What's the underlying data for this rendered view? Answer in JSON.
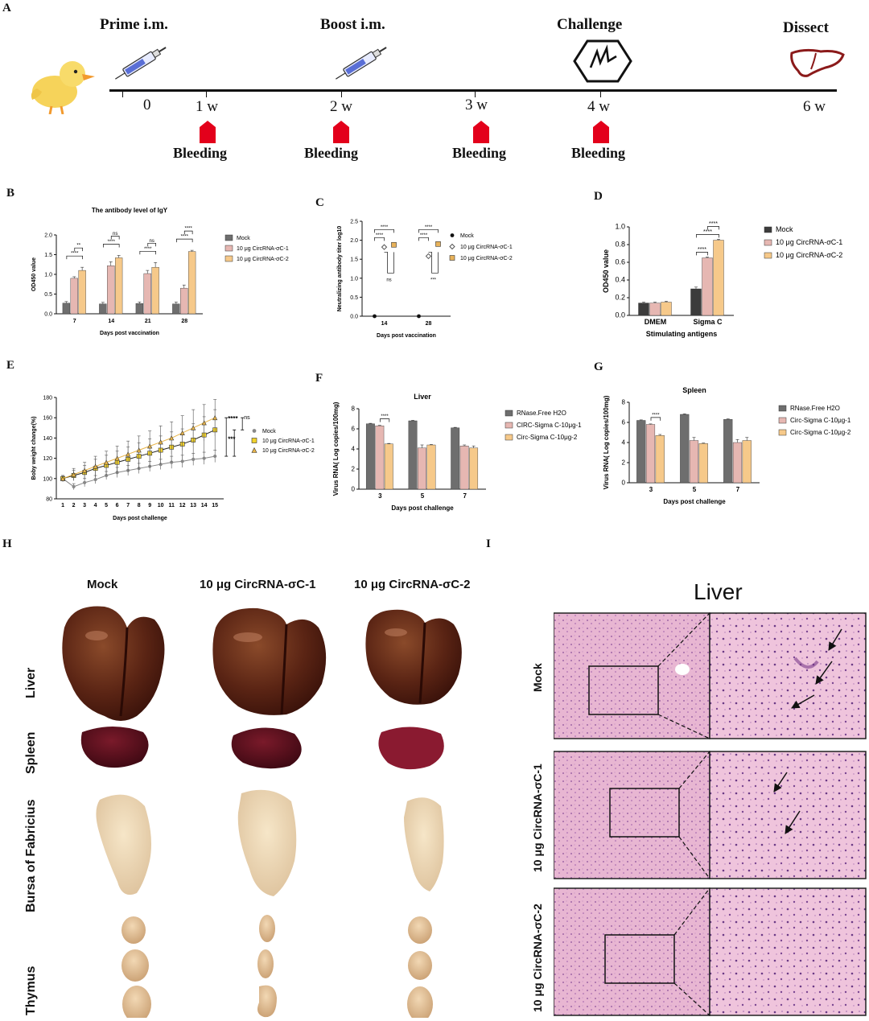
{
  "panels": {
    "A": "A",
    "B": "B",
    "C": "C",
    "D": "D",
    "E": "E",
    "F": "F",
    "G": "G",
    "H": "H",
    "I": "I"
  },
  "timeline": {
    "events": [
      "Prime i.m.",
      "Boost i.m.",
      "Challenge",
      "Dissect"
    ],
    "ticks": [
      "0",
      "1 w",
      "2 w",
      "3 w",
      "4 w",
      "6 w"
    ],
    "bleeding": [
      "Bleeding",
      "Bleeding",
      "Bleeding",
      "Bleeding"
    ],
    "colors": {
      "arrow": "#e3001b",
      "liver": "#8b1a1a",
      "syringe": "#5a6fd6"
    }
  },
  "photos": {
    "columns": [
      "Mock",
      "10 μg CircRNA-σC-1",
      "10 μg CircRNA-σC-2"
    ],
    "rows": [
      "Liver",
      "Spleen",
      "Bursa of Fabricius",
      "Thymus"
    ]
  },
  "histology": {
    "title": "Liver",
    "rows": [
      "Mock",
      "10 μg CircRNA-σC-1",
      "10 μg CircRNA-σC-2"
    ]
  },
  "chart_data": [
    {
      "id": "B",
      "type": "bar",
      "title": "The antibody level of IgY",
      "xlabel": "Days post vaccination",
      "ylabel": "OD450 value",
      "ylim": [
        0,
        2.0
      ],
      "yticks": [
        "0.0",
        "0.5",
        "1.0",
        "1.5",
        "2.0"
      ],
      "categories": [
        "7",
        "14",
        "21",
        "28"
      ],
      "series": [
        {
          "name": "Mock",
          "values": [
            0.27,
            0.25,
            0.26,
            0.25
          ],
          "errors": [
            0.04,
            0.04,
            0.04,
            0.05
          ],
          "color": "#6e6e6e"
        },
        {
          "name": "10 μg CircRNA-σC-1",
          "values": [
            0.9,
            1.22,
            1.02,
            0.65
          ],
          "errors": [
            0.04,
            0.1,
            0.08,
            0.08
          ],
          "color": "#e6b7b2"
        },
        {
          "name": "10 μg CircRNA-σC-2",
          "values": [
            1.1,
            1.42,
            1.18,
            1.58
          ],
          "errors": [
            0.08,
            0.06,
            0.12,
            0.03
          ],
          "color": "#f6c98a"
        }
      ],
      "annotations": [
        "****",
        "**",
        "****",
        "ns",
        "****",
        "ns",
        "****",
        "****"
      ]
    },
    {
      "id": "C",
      "type": "scatter",
      "title": "",
      "xlabel": "Days post vaccination",
      "ylabel": "Neutralizing antibody titer log10",
      "ylim": [
        0,
        2.5
      ],
      "yticks": [
        "0.0",
        "0.5",
        "1.0",
        "1.5",
        "2.0",
        "2.5"
      ],
      "categories": [
        "14",
        "28"
      ],
      "series": [
        {
          "name": "Mock",
          "values": [
            0.0,
            0.0
          ],
          "marker": "circle",
          "color": "#111111"
        },
        {
          "name": "10 μg CircRNA-σC-1",
          "values": [
            1.82,
            1.58
          ],
          "marker": "diamond",
          "color": "#555555"
        },
        {
          "name": "10 μg CircRNA-σC-2",
          "values": [
            1.88,
            1.9
          ],
          "marker": "square",
          "color": "#e8b25a"
        }
      ],
      "annotations": [
        "****",
        "****",
        "ns",
        "****",
        "****",
        "***"
      ]
    },
    {
      "id": "D",
      "type": "bar",
      "title": "",
      "xlabel": "Stimulating antigens",
      "ylabel": "OD450 value",
      "ylim": [
        0,
        1.0
      ],
      "yticks": [
        "0.0",
        "0.2",
        "0.4",
        "0.6",
        "0.8",
        "1.0"
      ],
      "categories": [
        "DMEM",
        "Sigma C"
      ],
      "series": [
        {
          "name": "Mock",
          "values": [
            0.14,
            0.3
          ],
          "errors": [
            0.01,
            0.02
          ],
          "color": "#3c3c3c"
        },
        {
          "name": "10 μg CircRNA-σC-1",
          "values": [
            0.14,
            0.65
          ],
          "errors": [
            0.01,
            0.01
          ],
          "color": "#e6b7b2"
        },
        {
          "name": "10 μg CircRNA-σC-2",
          "values": [
            0.15,
            0.85
          ],
          "errors": [
            0.01,
            0.01
          ],
          "color": "#f6c98a"
        }
      ],
      "annotations": [
        "****",
        "****",
        "****"
      ]
    },
    {
      "id": "E",
      "type": "line",
      "title": "",
      "xlabel": "Days post challenge",
      "ylabel": "Boby weight change(%)",
      "ylim": [
        80,
        180
      ],
      "yticks": [
        "80",
        "100",
        "120",
        "140",
        "160",
        "180"
      ],
      "x": [
        "1",
        "2",
        "3",
        "4",
        "5",
        "6",
        "7",
        "8",
        "9",
        "10",
        "11",
        "12",
        "13",
        "14",
        "15"
      ],
      "series": [
        {
          "name": "Mock",
          "values": [
            100,
            92,
            96,
            99,
            103,
            106,
            108,
            110,
            112,
            114,
            116,
            117,
            119,
            120,
            122
          ],
          "errors": [
            2,
            3,
            4,
            4,
            4,
            5,
            5,
            5,
            5,
            5,
            6,
            6,
            6,
            6,
            6
          ],
          "marker": "circle",
          "color": "#888888"
        },
        {
          "name": "10 μg CircRNA-σC-1",
          "values": [
            100,
            103,
            106,
            110,
            113,
            116,
            119,
            122,
            125,
            128,
            131,
            134,
            138,
            143,
            148
          ],
          "errors": [
            3,
            5,
            7,
            9,
            10,
            11,
            12,
            13,
            14,
            14,
            15,
            15,
            16,
            18,
            20
          ],
          "marker": "square",
          "color": "#f2d22b"
        },
        {
          "name": "10 μg CircRNA-σC-2",
          "values": [
            100,
            104,
            108,
            112,
            116,
            120,
            124,
            128,
            132,
            136,
            140,
            145,
            150,
            155,
            160
          ],
          "errors": [
            3,
            6,
            8,
            10,
            11,
            12,
            13,
            14,
            15,
            16,
            16,
            17,
            18,
            18,
            18
          ],
          "marker": "triangle",
          "color": "#e9b54a"
        }
      ],
      "annotations": [
        "****",
        "ns",
        "***"
      ]
    },
    {
      "id": "F",
      "type": "bar",
      "title": "Liver",
      "xlabel": "Days post challenge",
      "ylabel": "Virus RNA( Log copies/100mg)",
      "ylim": [
        0,
        8
      ],
      "yticks": [
        "0",
        "2",
        "4",
        "6",
        "8"
      ],
      "categories": [
        "3",
        "5",
        "7"
      ],
      "series": [
        {
          "name": "RNase.Free H2O",
          "values": [
            6.5,
            6.8,
            6.1
          ],
          "errors": [
            0.05,
            0.05,
            0.05
          ],
          "color": "#6e6e6e"
        },
        {
          "name": "CIRC-Sigma C-10μg-1",
          "values": [
            6.3,
            4.1,
            4.3
          ],
          "errors": [
            0.05,
            0.3,
            0.1
          ],
          "color": "#e6b7b2"
        },
        {
          "name": "Circ-Sigma C-10μg-2",
          "values": [
            4.5,
            4.4,
            4.1
          ],
          "errors": [
            0.05,
            0.05,
            0.2
          ],
          "color": "#f6c98a"
        }
      ],
      "annotations": [
        "****"
      ]
    },
    {
      "id": "G",
      "type": "bar",
      "title": "Spleen",
      "xlabel": "Days post challenge",
      "ylabel": "Virus RNA( Log copies/100mg)",
      "ylim": [
        0,
        8
      ],
      "yticks": [
        "0",
        "2",
        "4",
        "6",
        "8"
      ],
      "categories": [
        "3",
        "5",
        "7"
      ],
      "series": [
        {
          "name": "RNase.Free H2O",
          "values": [
            6.2,
            6.8,
            6.3
          ],
          "errors": [
            0.05,
            0.05,
            0.05
          ],
          "color": "#6e6e6e"
        },
        {
          "name": "Circ-Sigma C-10μg-1",
          "values": [
            5.8,
            4.2,
            4.0
          ],
          "errors": [
            0.05,
            0.3,
            0.3
          ],
          "color": "#e6b7b2"
        },
        {
          "name": "Circ-Sigma C-10μg-2",
          "values": [
            4.7,
            3.9,
            4.2
          ],
          "errors": [
            0.1,
            0.05,
            0.3
          ],
          "color": "#f6c98a"
        }
      ],
      "annotations": [
        "****"
      ]
    }
  ]
}
